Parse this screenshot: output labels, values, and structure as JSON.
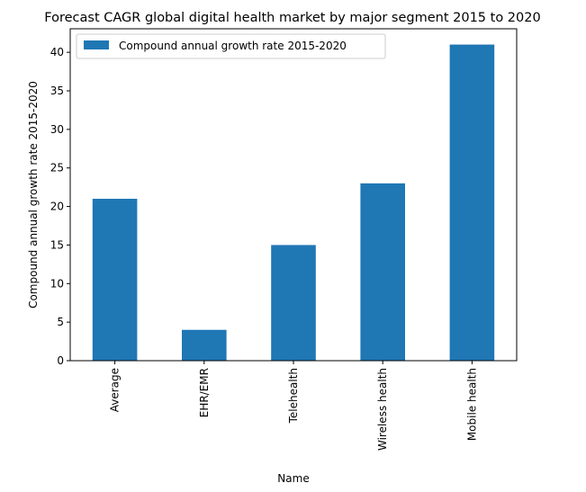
{
  "chart_data": {
    "type": "bar",
    "title": "Forecast CAGR global digital health market by major segment 2015 to 2020",
    "xlabel": "Name",
    "ylabel": "Compound annual growth rate 2015-2020",
    "categories": [
      "Average",
      "EHR/EMR",
      "Telehealth",
      "Wireless health",
      "Mobile health"
    ],
    "series": [
      {
        "name": "Compound annual growth rate 2015-2020",
        "values": [
          21,
          4,
          15,
          23,
          41
        ],
        "color": "#1f77b4"
      }
    ],
    "ylim": [
      0,
      43.05
    ],
    "yticks": [
      0,
      5,
      10,
      15,
      20,
      25,
      30,
      35,
      40
    ],
    "grid": false,
    "legend_position": "top-left"
  }
}
